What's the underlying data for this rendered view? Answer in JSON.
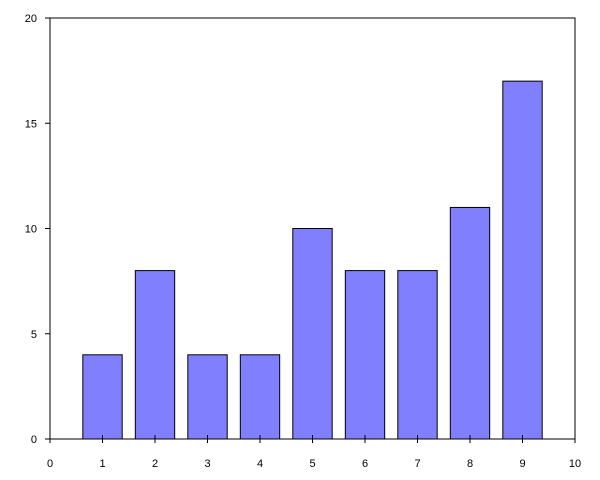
{
  "chart_data": {
    "type": "bar",
    "title": "",
    "xlabel": "",
    "ylabel": "",
    "x": [
      1,
      2,
      3,
      4,
      5,
      6,
      7,
      8,
      9
    ],
    "values": [
      4,
      8,
      4,
      4,
      10,
      8,
      8,
      11,
      17
    ],
    "xlim": [
      0,
      10
    ],
    "ylim": [
      0,
      20
    ],
    "x_ticks": [
      "0",
      "1",
      "2",
      "3",
      "4",
      "5",
      "6",
      "7",
      "8",
      "9",
      "10"
    ],
    "y_ticks": [
      "0",
      "5",
      "10",
      "15",
      "20"
    ],
    "bar_width": 0.75,
    "grid": false,
    "legend": "none",
    "colors": {
      "bar_fill": "#8080ff",
      "bar_stroke": "#000000",
      "axis": "#000000"
    }
  }
}
